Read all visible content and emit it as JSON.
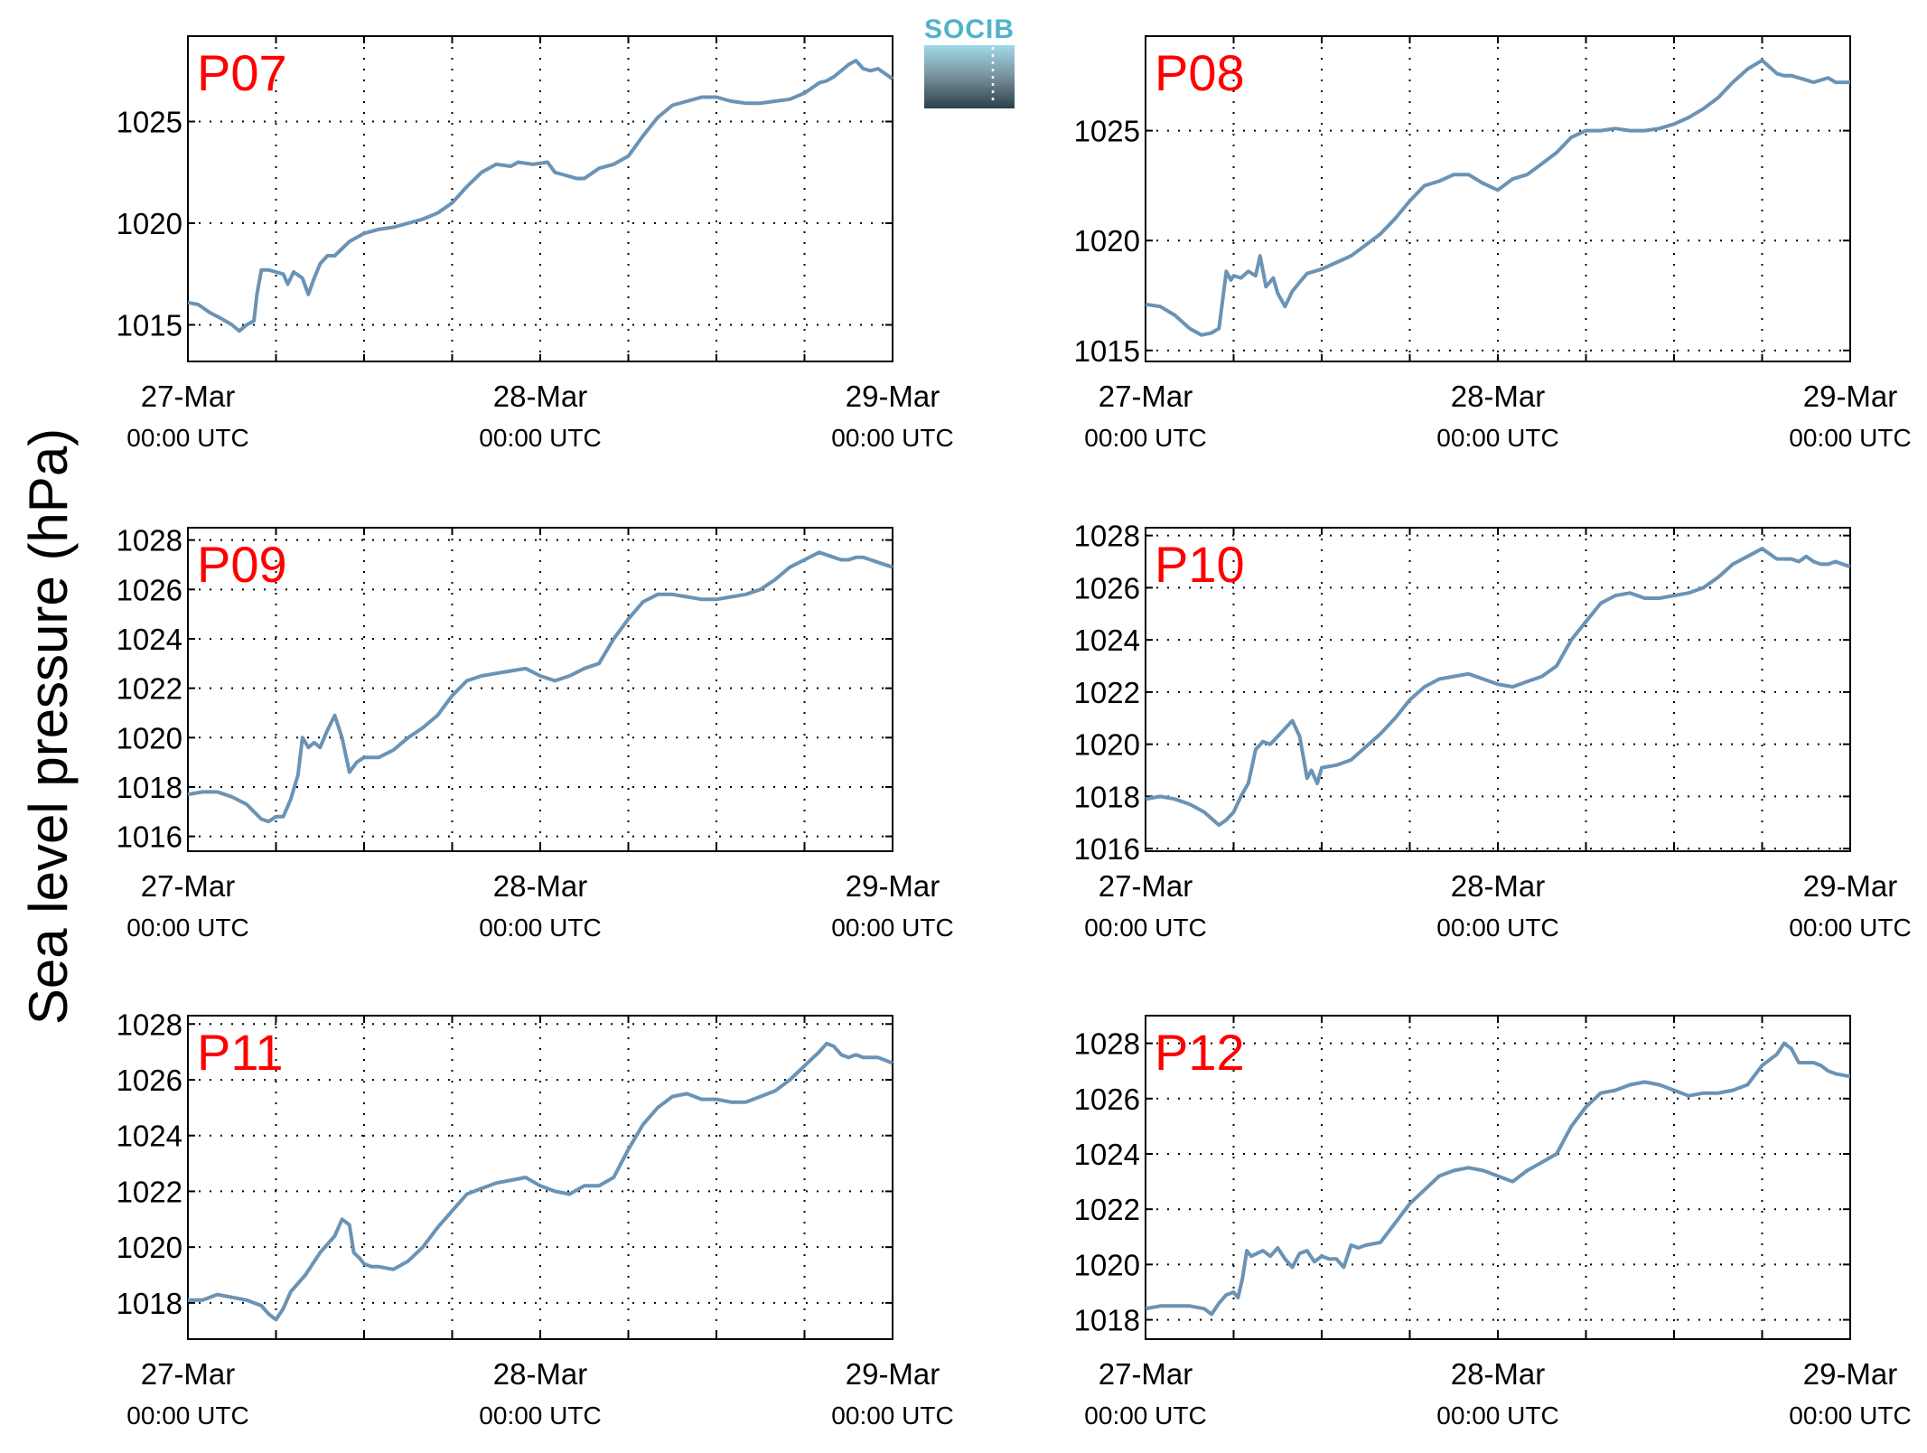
{
  "figure": {
    "ylabel": "Sea level pressure (hPa)",
    "logo_text": "SOCIB"
  },
  "colors": {
    "line": "#6a93b5",
    "label": "#ff0000",
    "grid": "#000000",
    "logo_top": "#4fb3c9",
    "logo_bottom": "#2d3f4b"
  },
  "chart_data": [
    {
      "type": "line",
      "title": "P07",
      "xlim": [
        0,
        48
      ],
      "ylim": [
        1013.2,
        1029.2
      ],
      "yticks": [
        1015,
        1020,
        1025
      ],
      "xgrid": [
        6,
        12,
        18,
        24,
        30,
        36,
        42
      ],
      "xticks": [
        {
          "x": 0,
          "label": "27-Mar",
          "sub": "00:00 UTC"
        },
        {
          "x": 24,
          "label": "28-Mar",
          "sub": "00:00 UTC"
        },
        {
          "x": 48,
          "label": "29-Mar",
          "sub": "00:00 UTC"
        }
      ],
      "x": [
        0,
        0.7,
        1.5,
        2.3,
        3.0,
        3.5,
        4.0,
        4.5,
        4.7,
        5.0,
        5.5,
        6.0,
        6.5,
        6.8,
        7.2,
        7.8,
        8.2,
        8.6,
        9.0,
        9.5,
        10.0,
        11.0,
        12.0,
        13.0,
        14.0,
        15.0,
        16.0,
        17.0,
        18.0,
        19.0,
        20.0,
        21.0,
        22.0,
        22.5,
        23.5,
        24.5,
        25.0,
        25.5,
        26.5,
        27.0,
        28.0,
        29.0,
        30.0,
        31.0,
        32.0,
        33.0,
        34.0,
        35.0,
        36.0,
        37.0,
        38.0,
        39.0,
        40.0,
        41.0,
        42.0,
        43.0,
        43.5,
        44.0,
        44.5,
        45.0,
        45.5,
        46.0,
        46.5,
        47.0,
        48.0
      ],
      "y": [
        1016.1,
        1016.0,
        1015.6,
        1015.3,
        1015.0,
        1014.7,
        1015.0,
        1015.2,
        1016.5,
        1017.7,
        1017.7,
        1017.6,
        1017.5,
        1017.0,
        1017.6,
        1017.3,
        1016.5,
        1017.3,
        1018.0,
        1018.4,
        1018.4,
        1019.1,
        1019.5,
        1019.7,
        1019.8,
        1020.0,
        1020.2,
        1020.5,
        1021.0,
        1021.8,
        1022.5,
        1022.9,
        1022.8,
        1023.0,
        1022.9,
        1023.0,
        1022.5,
        1022.4,
        1022.2,
        1022.2,
        1022.7,
        1022.9,
        1023.3,
        1024.3,
        1025.2,
        1025.8,
        1026.0,
        1026.2,
        1026.2,
        1026.0,
        1025.9,
        1025.9,
        1026.0,
        1026.1,
        1026.4,
        1026.9,
        1027.0,
        1027.2,
        1027.5,
        1027.8,
        1028.0,
        1027.6,
        1027.5,
        1027.6,
        1027.1
      ]
    },
    {
      "type": "line",
      "title": "P08",
      "xlim": [
        0,
        48
      ],
      "ylim": [
        1014.5,
        1029.3
      ],
      "yticks": [
        1015,
        1020,
        1025
      ],
      "xgrid": [
        6,
        12,
        18,
        24,
        30,
        36,
        42
      ],
      "xticks": [
        {
          "x": 0,
          "label": "27-Mar",
          "sub": "00:00 UTC"
        },
        {
          "x": 24,
          "label": "28-Mar",
          "sub": "00:00 UTC"
        },
        {
          "x": 48,
          "label": "29-Mar",
          "sub": "00:00 UTC"
        }
      ],
      "x": [
        0,
        1.0,
        2.0,
        3.0,
        3.8,
        4.5,
        5.0,
        5.5,
        5.8,
        6.0,
        6.5,
        7.0,
        7.5,
        7.8,
        8.2,
        8.7,
        9.0,
        9.5,
        10.0,
        10.5,
        11.0,
        12.0,
        13.0,
        14.0,
        15.0,
        16.0,
        17.0,
        18.0,
        19.0,
        20.0,
        21.0,
        22.0,
        23.0,
        24.0,
        25.0,
        26.0,
        27.0,
        28.0,
        29.0,
        30.0,
        31.0,
        32.0,
        33.0,
        34.0,
        35.0,
        36.0,
        37.0,
        38.0,
        39.0,
        40.0,
        41.0,
        42.0,
        43.0,
        43.5,
        44.0,
        44.5,
        45.0,
        45.5,
        46.0,
        46.5,
        47.0,
        48.0
      ],
      "y": [
        1017.1,
        1017.0,
        1016.6,
        1016.0,
        1015.7,
        1015.8,
        1016.0,
        1018.6,
        1018.2,
        1018.4,
        1018.3,
        1018.6,
        1018.4,
        1019.3,
        1017.9,
        1018.3,
        1017.6,
        1017.0,
        1017.7,
        1018.1,
        1018.5,
        1018.7,
        1019.0,
        1019.3,
        1019.8,
        1020.3,
        1021.0,
        1021.8,
        1022.5,
        1022.7,
        1023.0,
        1023.0,
        1022.6,
        1022.3,
        1022.8,
        1023.0,
        1023.5,
        1024.0,
        1024.7,
        1025.0,
        1025.0,
        1025.1,
        1025.0,
        1025.0,
        1025.1,
        1025.3,
        1025.6,
        1026.0,
        1026.5,
        1027.2,
        1027.8,
        1028.2,
        1027.6,
        1027.5,
        1027.5,
        1027.4,
        1027.3,
        1027.2,
        1027.3,
        1027.4,
        1027.2,
        1027.2
      ]
    },
    {
      "type": "line",
      "title": "P09",
      "xlim": [
        0,
        48
      ],
      "ylim": [
        1015.4,
        1028.5
      ],
      "yticks": [
        1016,
        1018,
        1020,
        1022,
        1024,
        1026,
        1028
      ],
      "xgrid": [
        6,
        12,
        18,
        24,
        30,
        36,
        42
      ],
      "xticks": [
        {
          "x": 0,
          "label": "27-Mar",
          "sub": "00:00 UTC"
        },
        {
          "x": 24,
          "label": "28-Mar",
          "sub": "00:00 UTC"
        },
        {
          "x": 48,
          "label": "29-Mar",
          "sub": "00:00 UTC"
        }
      ],
      "x": [
        0,
        1.0,
        2.0,
        3.0,
        4.0,
        4.5,
        5.0,
        5.5,
        6.0,
        6.5,
        7.0,
        7.5,
        7.8,
        8.2,
        8.6,
        9.0,
        9.5,
        10.0,
        10.5,
        11.0,
        11.5,
        12.0,
        13.0,
        14.0,
        15.0,
        16.0,
        17.0,
        18.0,
        19.0,
        20.0,
        21.0,
        22.0,
        23.0,
        24.0,
        25.0,
        26.0,
        27.0,
        28.0,
        29.0,
        30.0,
        31.0,
        32.0,
        33.0,
        34.0,
        35.0,
        36.0,
        37.0,
        38.0,
        39.0,
        40.0,
        41.0,
        42.0,
        43.0,
        44.0,
        44.5,
        45.0,
        45.5,
        46.0,
        46.5,
        47.0,
        48.0
      ],
      "y": [
        1017.7,
        1017.8,
        1017.8,
        1017.6,
        1017.3,
        1017.0,
        1016.7,
        1016.6,
        1016.8,
        1016.8,
        1017.5,
        1018.5,
        1020.0,
        1019.6,
        1019.8,
        1019.6,
        1020.3,
        1020.9,
        1020.0,
        1018.6,
        1019.0,
        1019.2,
        1019.2,
        1019.5,
        1020.0,
        1020.4,
        1020.9,
        1021.7,
        1022.3,
        1022.5,
        1022.6,
        1022.7,
        1022.8,
        1022.5,
        1022.3,
        1022.5,
        1022.8,
        1023.0,
        1024.0,
        1024.8,
        1025.5,
        1025.8,
        1025.8,
        1025.7,
        1025.6,
        1025.6,
        1025.7,
        1025.8,
        1026.0,
        1026.4,
        1026.9,
        1027.2,
        1027.5,
        1027.3,
        1027.2,
        1027.2,
        1027.3,
        1027.3,
        1027.2,
        1027.1,
        1026.9
      ]
    },
    {
      "type": "line",
      "title": "P10",
      "xlim": [
        0,
        48
      ],
      "ylim": [
        1015.9,
        1028.3
      ],
      "yticks": [
        1016,
        1018,
        1020,
        1022,
        1024,
        1026,
        1028
      ],
      "xgrid": [
        6,
        12,
        18,
        24,
        30,
        36,
        42
      ],
      "xticks": [
        {
          "x": 0,
          "label": "27-Mar",
          "sub": "00:00 UTC"
        },
        {
          "x": 24,
          "label": "28-Mar",
          "sub": "00:00 UTC"
        },
        {
          "x": 48,
          "label": "29-Mar",
          "sub": "00:00 UTC"
        }
      ],
      "x": [
        0,
        1.0,
        2.0,
        3.0,
        4.0,
        5.0,
        5.5,
        6.0,
        6.5,
        7.0,
        7.5,
        8.0,
        8.5,
        9.0,
        9.5,
        10.0,
        10.5,
        11.0,
        11.3,
        11.7,
        12.0,
        13.0,
        14.0,
        15.0,
        16.0,
        17.0,
        18.0,
        19.0,
        20.0,
        21.0,
        22.0,
        23.0,
        24.0,
        25.0,
        26.0,
        27.0,
        28.0,
        29.0,
        30.0,
        31.0,
        32.0,
        33.0,
        34.0,
        35.0,
        36.0,
        37.0,
        38.0,
        39.0,
        40.0,
        41.0,
        42.0,
        43.0,
        44.0,
        44.5,
        45.0,
        45.5,
        46.0,
        46.5,
        47.0,
        48.0
      ],
      "y": [
        1017.9,
        1018.0,
        1017.9,
        1017.7,
        1017.4,
        1016.9,
        1017.1,
        1017.4,
        1018.0,
        1018.5,
        1019.8,
        1020.1,
        1020.0,
        1020.3,
        1020.6,
        1020.9,
        1020.3,
        1018.7,
        1019.0,
        1018.5,
        1019.1,
        1019.2,
        1019.4,
        1019.9,
        1020.4,
        1021.0,
        1021.7,
        1022.2,
        1022.5,
        1022.6,
        1022.7,
        1022.5,
        1022.3,
        1022.2,
        1022.4,
        1022.6,
        1023.0,
        1024.0,
        1024.7,
        1025.4,
        1025.7,
        1025.8,
        1025.6,
        1025.6,
        1025.7,
        1025.8,
        1026.0,
        1026.4,
        1026.9,
        1027.2,
        1027.5,
        1027.1,
        1027.1,
        1027.0,
        1027.2,
        1027.0,
        1026.9,
        1026.9,
        1027.0,
        1026.8
      ]
    },
    {
      "type": "line",
      "title": "P11",
      "xlim": [
        0,
        48
      ],
      "ylim": [
        1016.7,
        1028.3
      ],
      "yticks": [
        1018,
        1020,
        1022,
        1024,
        1026,
        1028
      ],
      "xgrid": [
        6,
        12,
        18,
        24,
        30,
        36,
        42
      ],
      "xticks": [
        {
          "x": 0,
          "label": "27-Mar",
          "sub": "00:00 UTC"
        },
        {
          "x": 24,
          "label": "28-Mar",
          "sub": "00:00 UTC"
        },
        {
          "x": 48,
          "label": "29-Mar",
          "sub": "00:00 UTC"
        }
      ],
      "x": [
        0,
        1.0,
        2.0,
        3.0,
        4.0,
        5.0,
        5.5,
        6.0,
        6.5,
        7.0,
        8.0,
        9.0,
        10.0,
        10.5,
        11.0,
        11.3,
        11.7,
        12.0,
        12.5,
        13.0,
        14.0,
        15.0,
        16.0,
        17.0,
        18.0,
        19.0,
        20.0,
        21.0,
        22.0,
        23.0,
        24.0,
        25.0,
        26.0,
        27.0,
        28.0,
        29.0,
        30.0,
        31.0,
        32.0,
        33.0,
        34.0,
        35.0,
        36.0,
        37.0,
        38.0,
        39.0,
        40.0,
        41.0,
        42.0,
        43.0,
        43.5,
        44.0,
        44.5,
        45.0,
        45.5,
        46.0,
        46.5,
        47.0,
        48.0
      ],
      "y": [
        1018.1,
        1018.1,
        1018.3,
        1018.2,
        1018.1,
        1017.9,
        1017.6,
        1017.4,
        1017.8,
        1018.4,
        1019.0,
        1019.8,
        1020.4,
        1021.0,
        1020.8,
        1019.8,
        1019.6,
        1019.4,
        1019.3,
        1019.3,
        1019.2,
        1019.5,
        1020.0,
        1020.7,
        1021.3,
        1021.9,
        1022.1,
        1022.3,
        1022.4,
        1022.5,
        1022.2,
        1022.0,
        1021.9,
        1022.2,
        1022.2,
        1022.5,
        1023.5,
        1024.4,
        1025.0,
        1025.4,
        1025.5,
        1025.3,
        1025.3,
        1025.2,
        1025.2,
        1025.4,
        1025.6,
        1026.0,
        1026.5,
        1027.0,
        1027.3,
        1027.2,
        1026.9,
        1026.8,
        1026.9,
        1026.8,
        1026.8,
        1026.8,
        1026.6
      ]
    },
    {
      "type": "line",
      "title": "P12",
      "xlim": [
        0,
        48
      ],
      "ylim": [
        1017.3,
        1029.0
      ],
      "yticks": [
        1018,
        1020,
        1022,
        1024,
        1026,
        1028
      ],
      "xgrid": [
        6,
        12,
        18,
        24,
        30,
        36,
        42
      ],
      "xticks": [
        {
          "x": 0,
          "label": "27-Mar",
          "sub": "00:00 UTC"
        },
        {
          "x": 24,
          "label": "28-Mar",
          "sub": "00:00 UTC"
        },
        {
          "x": 48,
          "label": "29-Mar",
          "sub": "00:00 UTC"
        }
      ],
      "x": [
        0,
        1.0,
        2.0,
        3.0,
        4.0,
        4.5,
        5.0,
        5.5,
        6.0,
        6.3,
        6.6,
        6.9,
        7.2,
        7.6,
        8.0,
        8.5,
        9.0,
        9.5,
        10.0,
        10.5,
        11.0,
        11.5,
        12.0,
        12.5,
        13.0,
        13.5,
        14.0,
        14.5,
        15.0,
        16.0,
        17.0,
        18.0,
        19.0,
        20.0,
        21.0,
        22.0,
        23.0,
        24.0,
        25.0,
        26.0,
        27.0,
        28.0,
        29.0,
        30.0,
        31.0,
        32.0,
        33.0,
        34.0,
        35.0,
        36.0,
        37.0,
        38.0,
        39.0,
        40.0,
        41.0,
        42.0,
        43.0,
        43.5,
        44.0,
        44.5,
        45.0,
        45.5,
        46.0,
        46.5,
        47.0,
        48.0
      ],
      "y": [
        1018.4,
        1018.5,
        1018.5,
        1018.5,
        1018.4,
        1018.2,
        1018.6,
        1018.9,
        1019.0,
        1018.8,
        1019.5,
        1020.5,
        1020.3,
        1020.4,
        1020.5,
        1020.3,
        1020.6,
        1020.2,
        1019.9,
        1020.4,
        1020.5,
        1020.1,
        1020.3,
        1020.2,
        1020.2,
        1019.9,
        1020.7,
        1020.6,
        1020.7,
        1020.8,
        1021.5,
        1022.2,
        1022.7,
        1023.2,
        1023.4,
        1023.5,
        1023.4,
        1023.2,
        1023.0,
        1023.4,
        1023.7,
        1024.0,
        1025.0,
        1025.7,
        1026.2,
        1026.3,
        1026.5,
        1026.6,
        1026.5,
        1026.3,
        1026.1,
        1026.2,
        1026.2,
        1026.3,
        1026.5,
        1027.2,
        1027.6,
        1028.0,
        1027.8,
        1027.3,
        1027.3,
        1027.3,
        1027.2,
        1027.0,
        1026.9,
        1026.8
      ]
    }
  ]
}
